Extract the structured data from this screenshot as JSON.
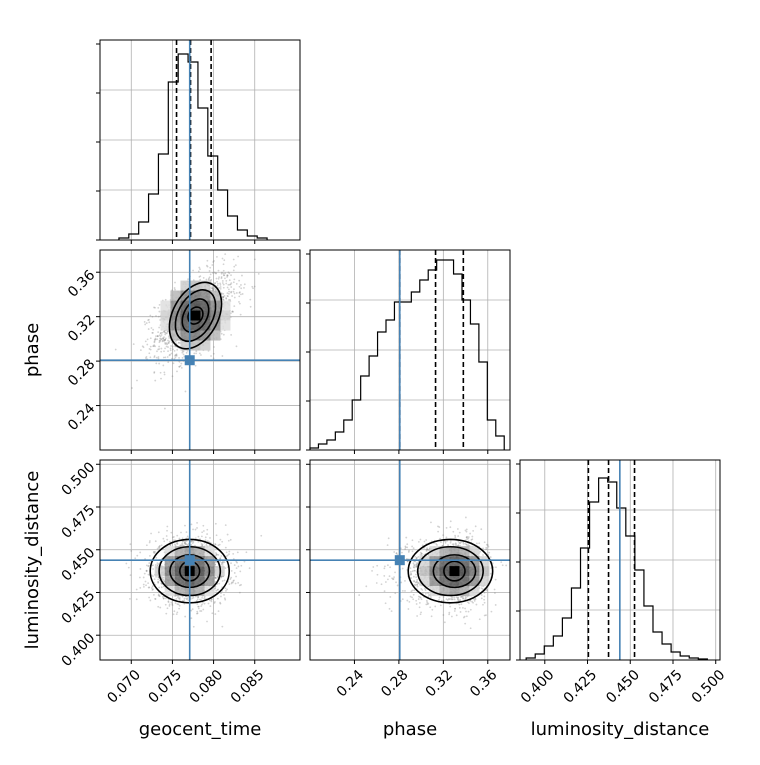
{
  "chart_data": {
    "type": "corner",
    "parameters": [
      {
        "name": "geocent_time",
        "truth": 0.0771,
        "range": [
          0.0662,
          0.0905
        ],
        "ticks": [
          "0.070",
          "0.075",
          "0.080",
          "0.085"
        ],
        "tick_values": [
          0.07,
          0.075,
          0.08,
          0.085
        ],
        "quantiles": [
          0.0755,
          0.0772,
          0.0797
        ],
        "histogram": {
          "bin_edges": [
            0.0685,
            0.0697,
            0.0709,
            0.0721,
            0.0733,
            0.0745,
            0.0757,
            0.0769,
            0.0781,
            0.0793,
            0.0805,
            0.0817,
            0.0829,
            0.0841,
            0.0853,
            0.0865
          ],
          "heights": [
            0.01,
            0.03,
            0.09,
            0.23,
            0.43,
            0.79,
            0.93,
            0.89,
            0.66,
            0.42,
            0.25,
            0.12,
            0.05,
            0.02,
            0.01
          ]
        }
      },
      {
        "name": "phase",
        "truth": 0.2808,
        "range": [
          0.2,
          0.38
        ],
        "ticks": [
          "0.24",
          "0.28",
          "0.32",
          "0.36"
        ],
        "tick_values": [
          0.24,
          0.28,
          0.32,
          0.36
        ],
        "quantiles": [
          0.2808,
          0.313,
          0.338
        ],
        "histogram": {
          "bin_edges": [
            0.2,
            0.2076,
            0.2152,
            0.2228,
            0.2304,
            0.238,
            0.2456,
            0.2532,
            0.2608,
            0.2684,
            0.276,
            0.2836,
            0.2912,
            0.2988,
            0.3064,
            0.314,
            0.3216,
            0.3292,
            0.3368,
            0.3444,
            0.352,
            0.3596,
            0.3672,
            0.3748
          ],
          "heights": [
            0.01,
            0.03,
            0.05,
            0.09,
            0.15,
            0.25,
            0.37,
            0.47,
            0.59,
            0.65,
            0.74,
            0.74,
            0.79,
            0.85,
            0.9,
            0.95,
            0.95,
            0.88,
            0.75,
            0.63,
            0.44,
            0.15,
            0.07
          ]
        }
      },
      {
        "name": "luminosity_distance",
        "truth": 0.4439,
        "range": [
          0.3855,
          0.5025
        ],
        "ticks": [
          "0.400",
          "0.425",
          "0.450",
          "0.475",
          "0.500"
        ],
        "tick_values": [
          0.4,
          0.425,
          0.45,
          0.475,
          0.5
        ],
        "quantiles": [
          0.4255,
          0.4373,
          0.4525
        ],
        "histogram": {
          "bin_edges": [
            0.3891,
            0.3944,
            0.3997,
            0.405,
            0.4103,
            0.4156,
            0.4209,
            0.4262,
            0.4315,
            0.4368,
            0.4421,
            0.4474,
            0.4527,
            0.458,
            0.4633,
            0.4686,
            0.4739,
            0.4792,
            0.4845,
            0.4898,
            0.4951
          ],
          "heights": [
            0.01,
            0.03,
            0.07,
            0.12,
            0.21,
            0.36,
            0.56,
            0.79,
            0.91,
            0.89,
            0.76,
            0.62,
            0.45,
            0.27,
            0.14,
            0.08,
            0.04,
            0.02,
            0.01,
            0.005
          ]
        }
      }
    ],
    "joint": [
      {
        "x": "geocent_time",
        "y": "phase",
        "peak": [
          0.0778,
          0.321
        ]
      },
      {
        "x": "geocent_time",
        "y": "luminosity_distance",
        "peak": [
          0.0771,
          0.4375
        ]
      },
      {
        "x": "phase",
        "y": "luminosity_distance",
        "peak": [
          0.33,
          0.4375
        ]
      }
    ],
    "truth_color": "#4682b4",
    "contour_color": "#000000",
    "grid": true
  }
}
